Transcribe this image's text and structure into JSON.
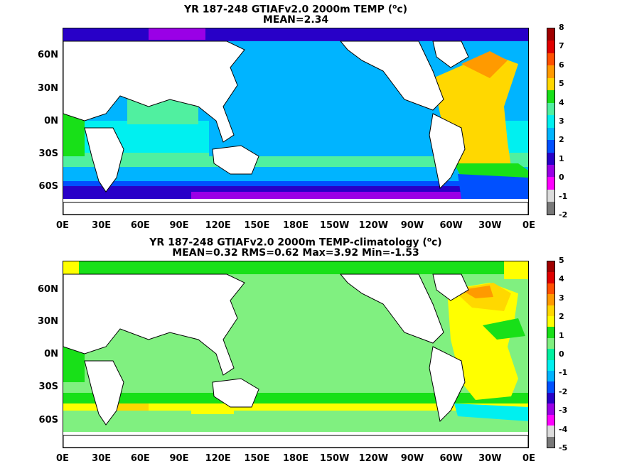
{
  "panels": [
    {
      "title_prefix": "YR 187-248 GTIAFv2.0 2000m TEMP (",
      "title_sup": "o",
      "title_suffix": "c)",
      "subtitle": "MEAN=2.34",
      "colorbar_labels": [
        "8",
        "7",
        "6",
        "5",
        "4",
        "3",
        "2",
        "1",
        "0",
        "-1",
        "-2"
      ],
      "colorbar_colors": [
        "#a00000",
        "#e00000",
        "#ff5000",
        "#ff9a00",
        "#ffd800",
        "#18e018",
        "#50f0a0",
        "#00f0f0",
        "#00b4ff",
        "#0050ff",
        "#2800c8",
        "#9a00e6",
        "#ff00ff",
        "#dcdcdc",
        "#787878"
      ]
    },
    {
      "title_prefix": "YR 187-248 GTIAFv2.0 2000m TEMP-climatology (",
      "title_sup": "o",
      "title_suffix": "c)",
      "subtitle": "MEAN=0.32   RMS=0.62   Max=3.92   Min=-1.53",
      "colorbar_labels": [
        "5",
        "4",
        "3",
        "2",
        "1",
        "0",
        "-1",
        "-2",
        "-3",
        "-4",
        "-5"
      ],
      "colorbar_colors": [
        "#a00000",
        "#e00000",
        "#ff5000",
        "#ff9a00",
        "#ffd800",
        "#ffff00",
        "#18e018",
        "#80f080",
        "#00f0a0",
        "#00f0f0",
        "#00b4ff",
        "#0050ff",
        "#2800c8",
        "#9a00e6",
        "#ff00ff",
        "#dcdcdc",
        "#787878"
      ]
    }
  ],
  "lat_labels": [
    "60N",
    "30N",
    "0N",
    "30S",
    "60S"
  ],
  "lon_labels": [
    "0E",
    "30E",
    "60E",
    "90E",
    "120E",
    "150E",
    "180E",
    "150W",
    "120W",
    "90W",
    "60W",
    "30W",
    "0E"
  ],
  "colors": {
    "land": "#ffffff",
    "coast": "#000000"
  }
}
